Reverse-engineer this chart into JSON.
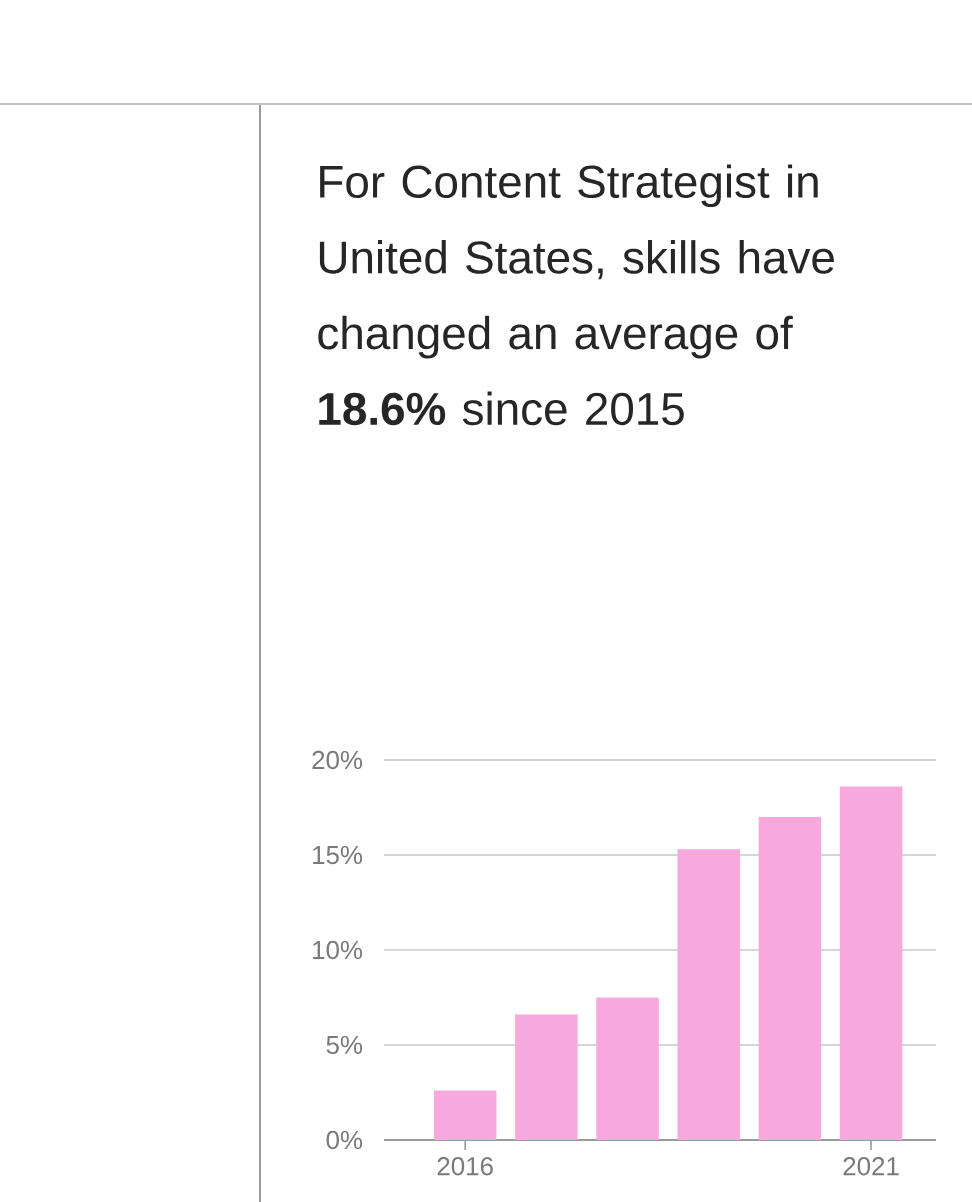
{
  "chart_data": {
    "type": "bar",
    "title": "For Content Strategist in United States, skills have changed an average of **18.6%** since 2015",
    "x": [
      2016,
      2017,
      2018,
      2019,
      2020,
      2021
    ],
    "values": [
      2.6,
      6.6,
      7.5,
      15.3,
      17.0,
      18.6
    ],
    "color": "#f7a8dc",
    "xlim": [
      2015,
      2021.8
    ],
    "xticks": [
      2016,
      2021
    ],
    "ylim": [
      0,
      20
    ],
    "yticks": [
      {
        "value": 0,
        "label": "0%"
      },
      {
        "value": 5,
        "label": "5%"
      },
      {
        "value": 10,
        "label": "10%"
      },
      {
        "value": 15,
        "label": "15%"
      },
      {
        "value": 20,
        "label": "20%"
      }
    ],
    "grid": "y"
  }
}
